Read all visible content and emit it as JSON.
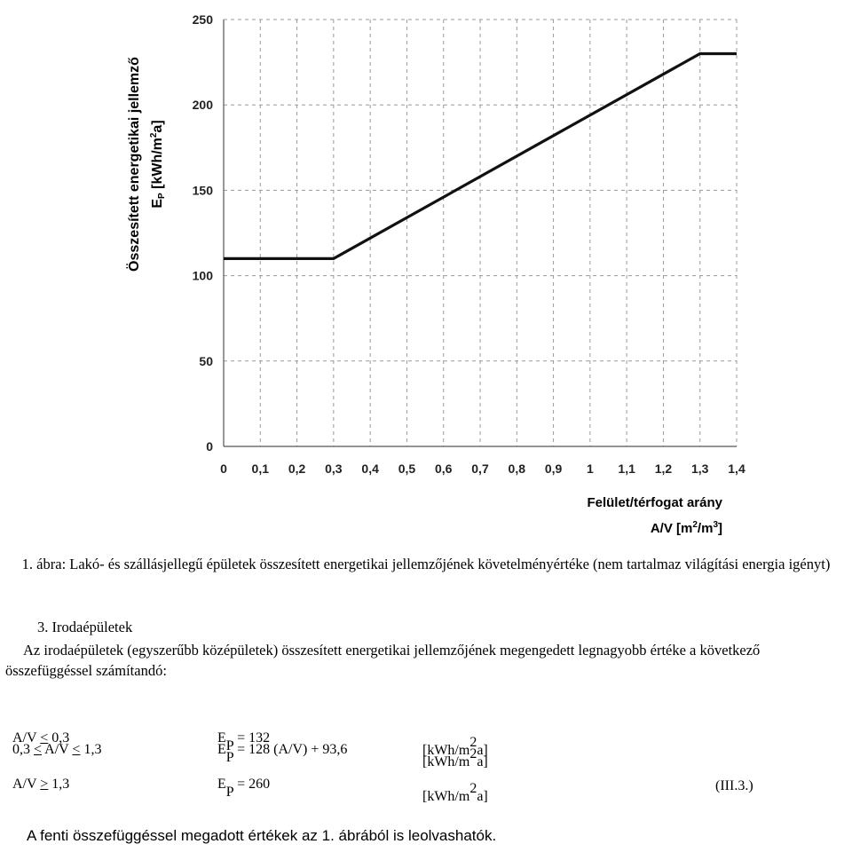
{
  "chart_data": {
    "type": "line",
    "x": [
      0,
      0.3,
      1.3,
      1.4
    ],
    "series": [
      {
        "values": [
          110,
          110,
          230,
          230
        ]
      }
    ],
    "xlim": [
      0,
      1.4
    ],
    "ylim": [
      0,
      250
    ],
    "x_ticks": [
      "0",
      "0,1",
      "0,2",
      "0,3",
      "0,4",
      "0,5",
      "0,6",
      "0,7",
      "0,8",
      "0,9",
      "1",
      "1,1",
      "1,2",
      "1,3",
      "1,4"
    ],
    "y_ticks": [
      "0",
      "50",
      "100",
      "150",
      "200",
      "250"
    ],
    "ylabel_line1": "Összesített energetikai jellemző",
    "ylabel_line2": "EP [kWh/m2a]",
    "xlabel_line1": "Felület/térfogat arány",
    "xlabel_line2": "A/V [m2/m3]",
    "grid": true,
    "line_color": "#111111",
    "grid_color": "#9a9a9a"
  },
  "caption": "1. ábra: Lakó- és szállásjellegű épületek összesített energetikai jellemzőjének követelményértéke (nem tartalmaz világítási energia igényt)",
  "section_title": "3. Irodaépületek",
  "paragraph": "Az irodaépületek (egyszerűbb középületek) összesített energetikai jellemzőjének megengedett legnagyobb értéke a következő összefüggéssel számítandó:",
  "formulas": [
    {
      "cond_pre": "A/V ",
      "cond_u1": "<",
      "cond_mid": " 0,3",
      "cond_u2": "",
      "cond_post": "",
      "ep_letter": "E",
      "ep_sub": "P",
      "expr": " = 132",
      "unit_pre": "[kWh/m",
      "unit_sup": "2",
      "unit_post": "a]",
      "ref": ""
    },
    {
      "cond_pre": "0,3 ",
      "cond_u1": "<",
      "cond_mid": " A/V ",
      "cond_u2": "<",
      "cond_post": " 1,3",
      "ep_letter": "E",
      "ep_sub": "P",
      "expr": " = 128 (A/V) + 93,6",
      "unit_pre": "[kWh/m",
      "unit_sup": "2",
      "unit_post": "a]",
      "ref": ""
    },
    {
      "cond_pre": "A/V ",
      "cond_u1": ">",
      "cond_mid": " 1,3",
      "cond_u2": "",
      "cond_post": "",
      "ep_letter": "E",
      "ep_sub": "P",
      "expr": " = 260",
      "unit_pre": "[kWh/m",
      "unit_sup": "2",
      "unit_post": "a]",
      "ref": "(III.3.)"
    }
  ],
  "final_note": "A fenti összefüggéssel megadott értékek az 1. ábrából is leolvashatók."
}
